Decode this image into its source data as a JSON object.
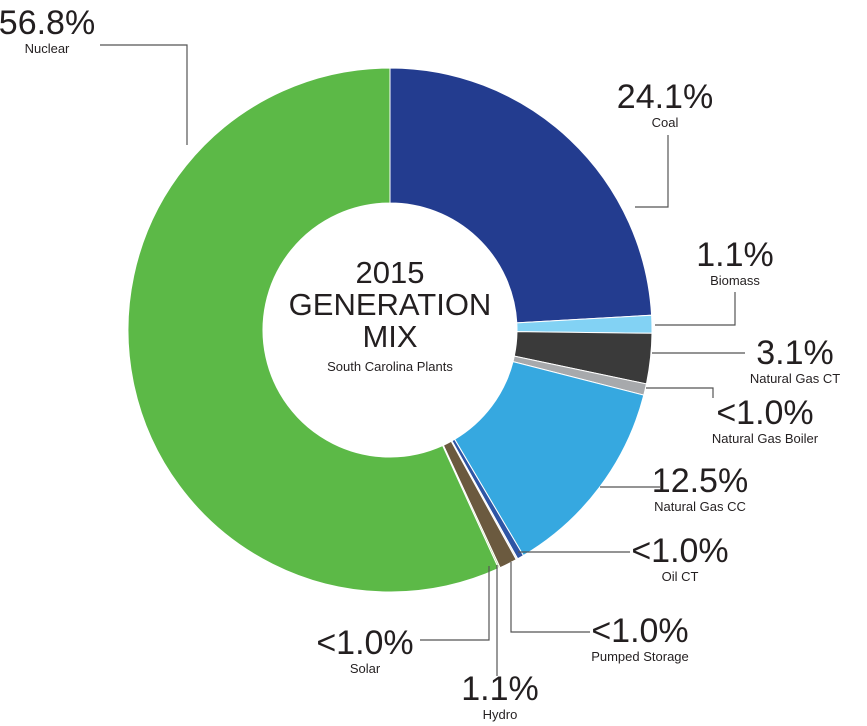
{
  "chart_data": {
    "type": "donut",
    "title": [
      "2015",
      "GENERATION",
      "MIX"
    ],
    "subtitle": "South Carolina Plants",
    "categories": [
      "Coal",
      "Biomass",
      "Natural Gas CT",
      "Natural Gas Boiler",
      "Natural Gas CC",
      "Oil CT",
      "Pumped Storage",
      "Hydro",
      "Solar",
      "Nuclear"
    ],
    "values": [
      24.1,
      1.1,
      3.1,
      0.7,
      12.5,
      0.4,
      0.1,
      1.1,
      0.1,
      56.8
    ],
    "value_labels": [
      "24.1%",
      "1.1%",
      "3.1%",
      "<1.0%",
      "12.5%",
      "<1.0%",
      "<1.0%",
      "1.1%",
      "<1.0%",
      "56.8%"
    ],
    "colors": [
      "#233c8f",
      "#82d2f4",
      "#3a3a3a",
      "#a7a9ac",
      "#36a8e0",
      "#2e55a5",
      "#e8e8e8",
      "#6b5a3f",
      "#b8d98b",
      "#5cb947"
    ]
  }
}
